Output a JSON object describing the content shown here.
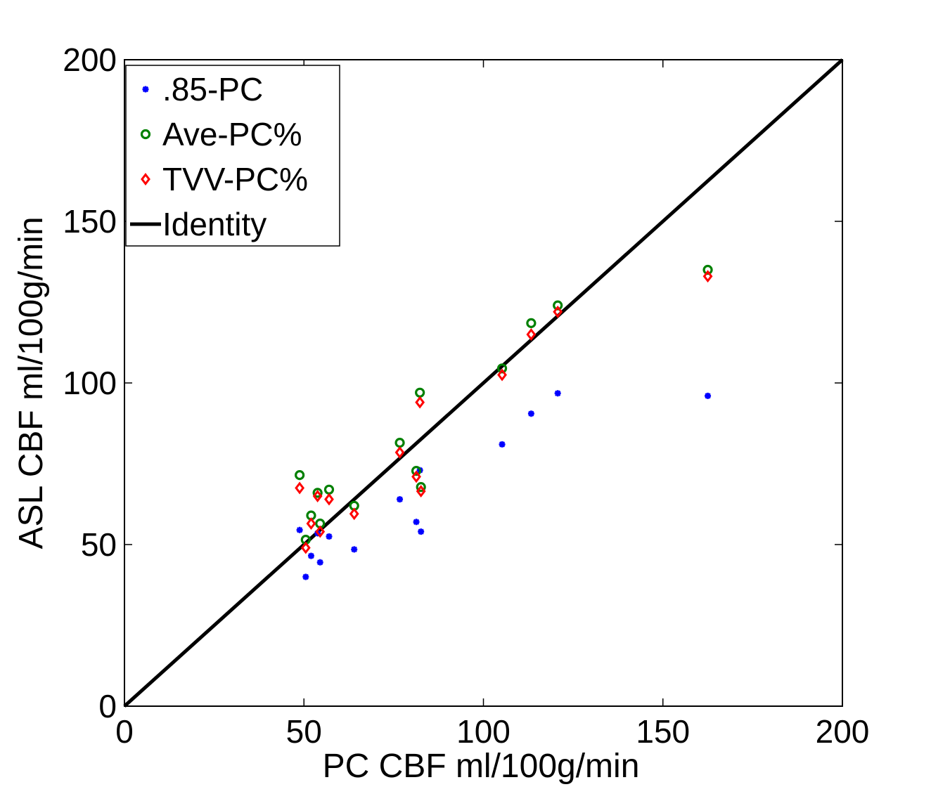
{
  "chart_data": {
    "type": "scatter",
    "title": "",
    "xlabel": "PC CBF ml/100g/min",
    "ylabel": "ASL CBF ml/100g/min",
    "xlim": [
      0,
      200
    ],
    "ylim": [
      0,
      200
    ],
    "xticks": [
      0,
      50,
      100,
      150,
      200
    ],
    "yticks": [
      0,
      50,
      100,
      150,
      200
    ],
    "grid": false,
    "legend_position": "top-left",
    "series": [
      {
        "name": ".85-PC",
        "color": "#0000ff",
        "marker": "asterisk",
        "points": [
          [
            48.8,
            54.5
          ],
          [
            50.5,
            40.0
          ],
          [
            52.0,
            46.5
          ],
          [
            53.8,
            53.5
          ],
          [
            54.5,
            44.5
          ],
          [
            57.0,
            52.5
          ],
          [
            64.0,
            48.5
          ],
          [
            76.7,
            64.0
          ],
          [
            81.3,
            57.0
          ],
          [
            82.3,
            73.0
          ],
          [
            82.6,
            54.0
          ],
          [
            105.2,
            81.0
          ],
          [
            113.3,
            90.5
          ],
          [
            120.7,
            96.8
          ],
          [
            162.5,
            96.0
          ]
        ]
      },
      {
        "name": "Ave-PC%",
        "color": "#008000",
        "marker": "circle",
        "points": [
          [
            48.8,
            71.5
          ],
          [
            50.5,
            51.5
          ],
          [
            52.0,
            59.0
          ],
          [
            53.8,
            66.0
          ],
          [
            54.5,
            56.5
          ],
          [
            57.0,
            67.0
          ],
          [
            64.0,
            62.0
          ],
          [
            76.7,
            81.5
          ],
          [
            81.3,
            72.8
          ],
          [
            82.3,
            97.0
          ],
          [
            82.6,
            67.8
          ],
          [
            105.2,
            104.5
          ],
          [
            113.3,
            118.5
          ],
          [
            120.7,
            124.0
          ],
          [
            162.5,
            135.0
          ]
        ]
      },
      {
        "name": "TVV-PC%",
        "color": "#ff0000",
        "marker": "diamond",
        "points": [
          [
            48.8,
            67.5
          ],
          [
            50.5,
            49.0
          ],
          [
            52.0,
            56.5
          ],
          [
            53.8,
            65.0
          ],
          [
            54.5,
            54.0
          ],
          [
            57.0,
            64.0
          ],
          [
            64.0,
            59.5
          ],
          [
            76.7,
            78.5
          ],
          [
            81.3,
            71.0
          ],
          [
            82.3,
            94.0
          ],
          [
            82.6,
            66.5
          ],
          [
            105.2,
            102.5
          ],
          [
            113.3,
            115.0
          ],
          [
            120.7,
            122.0
          ],
          [
            162.5,
            133.0
          ]
        ]
      },
      {
        "name": "Identity",
        "color": "#000000",
        "marker": "line",
        "points": [
          [
            0,
            0
          ],
          [
            200,
            200
          ]
        ]
      }
    ]
  }
}
